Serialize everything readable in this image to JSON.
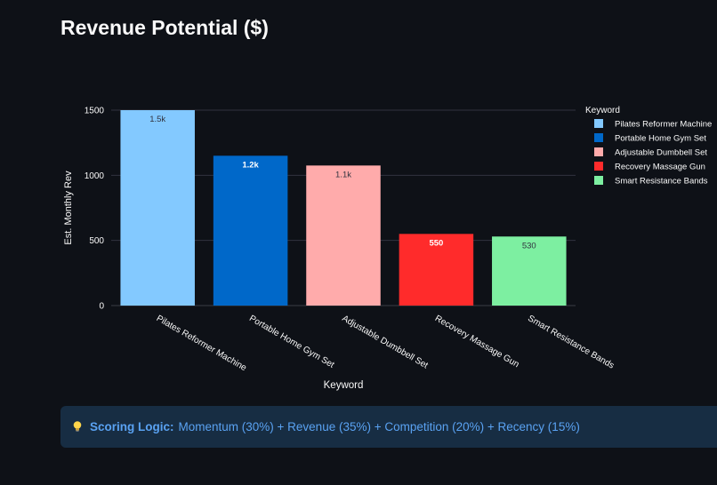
{
  "header": {
    "title": "Revenue Potential ($)"
  },
  "chart_data": {
    "type": "bar",
    "title": "",
    "xlabel": "Keyword",
    "ylabel": "Est. Monthly Rev",
    "ylim": [
      0,
      1500
    ],
    "yticks": [
      0,
      500,
      1000,
      1500
    ],
    "grid": true,
    "legend_title": "Keyword",
    "legend_position": "right",
    "categories": [
      "Pilates Reformer Machine",
      "Portable Home Gym Set",
      "Adjustable Dumbbell Set",
      "Recovery Massage Gun",
      "Smart Resistance Bands"
    ],
    "values": [
      1500,
      1150,
      1075,
      550,
      530
    ],
    "labels": [
      "1.5k",
      "1.2k",
      "1.1k",
      "550",
      "530"
    ],
    "colors": [
      "#83c9ff",
      "#0068c9",
      "#ffabab",
      "#ff2b2b",
      "#7defa1"
    ],
    "label_colors": [
      "#31333f",
      "#ffffff",
      "#31333f",
      "#ffffff",
      "#31333f"
    ]
  },
  "info": {
    "icon": "lightbulb-icon",
    "label": "Scoring Logic:",
    "text": "Momentum (30%) + Revenue (35%) + Competition (20%) + Recency (15%)"
  }
}
